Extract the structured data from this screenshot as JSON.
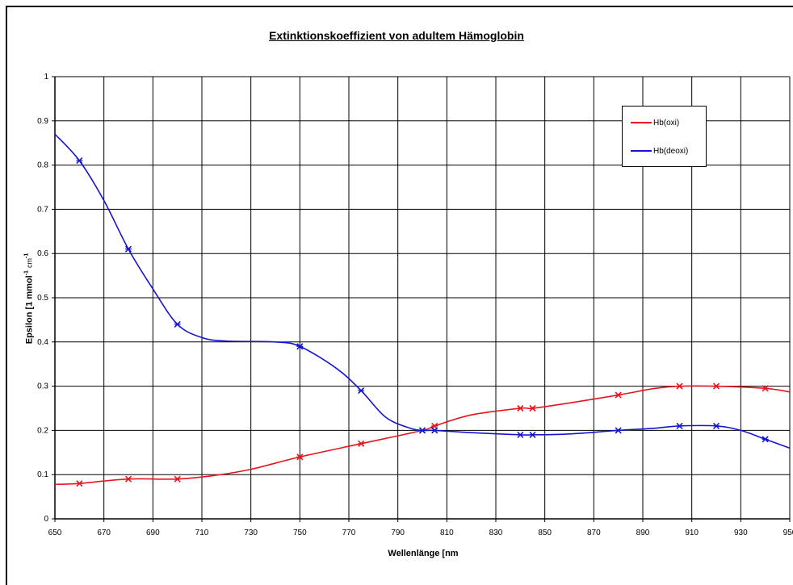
{
  "chart_data": {
    "type": "line",
    "title": "Extinktionskoeffizient von adultem Hämoglobin",
    "xlabel": "Wellenlänge [nm",
    "ylabel_main": "Epsilon [1 mmol",
    "ylabel_sup1": "-1",
    "ylabel_unit": "cm",
    "ylabel_sup2": "-1",
    "xlim": [
      650,
      950
    ],
    "ylim": [
      0,
      1
    ],
    "x_ticks": [
      650,
      670,
      690,
      710,
      730,
      750,
      770,
      790,
      810,
      830,
      850,
      870,
      890,
      910,
      930,
      950
    ],
    "x_tick_labels": [
      "650",
      "670",
      "690",
      "710",
      "730",
      "750",
      "770",
      "790",
      "810",
      "830",
      "850",
      "870",
      "890",
      "910",
      "930",
      "950"
    ],
    "y_ticks": [
      0,
      0.1,
      0.2,
      0.3,
      0.4,
      0.5,
      0.6,
      0.7,
      0.8,
      0.9,
      1
    ],
    "y_tick_labels": [
      "0",
      "0.1",
      "0.2",
      "0.3",
      "0.4",
      "0.5",
      "0.6",
      "0.7",
      "0.8",
      "0.9",
      "1"
    ],
    "grid": true,
    "legend_position": "top-right",
    "series": [
      {
        "name": "Hb(oxi)",
        "color": "#e8141b",
        "curve": [
          [
            650,
            0.078
          ],
          [
            660,
            0.08
          ],
          [
            680,
            0.09
          ],
          [
            700,
            0.09
          ],
          [
            715,
            0.098
          ],
          [
            730,
            0.112
          ],
          [
            750,
            0.14
          ],
          [
            775,
            0.17
          ],
          [
            800,
            0.2
          ],
          [
            805,
            0.21
          ],
          [
            820,
            0.235
          ],
          [
            840,
            0.25
          ],
          [
            845,
            0.25
          ],
          [
            860,
            0.262
          ],
          [
            880,
            0.28
          ],
          [
            895,
            0.295
          ],
          [
            905,
            0.3
          ],
          [
            920,
            0.3
          ],
          [
            940,
            0.295
          ],
          [
            950,
            0.287
          ]
        ],
        "markers": [
          [
            660,
            0.08
          ],
          [
            680,
            0.09
          ],
          [
            700,
            0.09
          ],
          [
            750,
            0.14
          ],
          [
            775,
            0.17
          ],
          [
            800,
            0.2
          ],
          [
            805,
            0.21
          ],
          [
            840,
            0.25
          ],
          [
            845,
            0.25
          ],
          [
            880,
            0.28
          ],
          [
            905,
            0.3
          ],
          [
            920,
            0.3
          ],
          [
            940,
            0.295
          ]
        ]
      },
      {
        "name": "Hb(deoxi)",
        "color": "#1414d2",
        "curve": [
          [
            650,
            0.87
          ],
          [
            660,
            0.81
          ],
          [
            670,
            0.72
          ],
          [
            680,
            0.61
          ],
          [
            690,
            0.52
          ],
          [
            700,
            0.44
          ],
          [
            710,
            0.41
          ],
          [
            720,
            0.402
          ],
          [
            740,
            0.4
          ],
          [
            750,
            0.39
          ],
          [
            765,
            0.34
          ],
          [
            775,
            0.29
          ],
          [
            785,
            0.23
          ],
          [
            795,
            0.205
          ],
          [
            800,
            0.2
          ],
          [
            805,
            0.2
          ],
          [
            820,
            0.195
          ],
          [
            840,
            0.19
          ],
          [
            845,
            0.19
          ],
          [
            860,
            0.192
          ],
          [
            880,
            0.2
          ],
          [
            895,
            0.205
          ],
          [
            905,
            0.21
          ],
          [
            920,
            0.21
          ],
          [
            930,
            0.2
          ],
          [
            940,
            0.18
          ],
          [
            950,
            0.16
          ]
        ],
        "markers": [
          [
            660,
            0.81
          ],
          [
            680,
            0.61
          ],
          [
            700,
            0.44
          ],
          [
            750,
            0.39
          ],
          [
            775,
            0.29
          ],
          [
            800,
            0.2
          ],
          [
            805,
            0.2
          ],
          [
            840,
            0.19
          ],
          [
            845,
            0.19
          ],
          [
            880,
            0.2
          ],
          [
            905,
            0.21
          ],
          [
            920,
            0.21
          ],
          [
            940,
            0.18
          ]
        ]
      }
    ]
  }
}
